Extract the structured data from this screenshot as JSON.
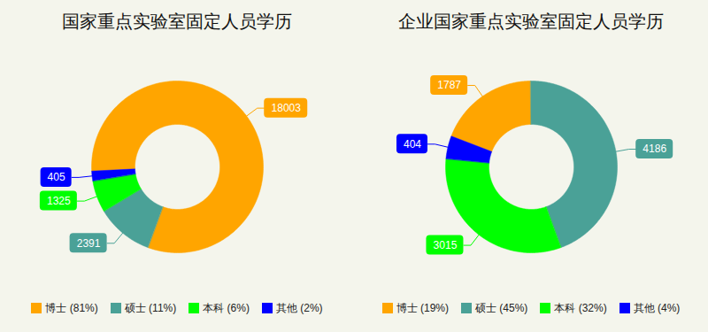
{
  "chart_data": [
    {
      "type": "donut",
      "title": "国家重点实验室固定人员学历",
      "categories": [
        "博士",
        "硕士",
        "本科",
        "其他"
      ],
      "values": [
        18003,
        2391,
        1325,
        405
      ],
      "colors": [
        "#ffa500",
        "#4aa197",
        "#00ff00",
        "#0000ff"
      ],
      "legend_labels": [
        "博士 (81%)",
        "硕士 (11%)",
        "本科 (6%)",
        "其他 (2%)"
      ],
      "data_labels": true,
      "legend": "bottom"
    },
    {
      "type": "donut",
      "title": "企业国家重点实验室固定人员学历",
      "categories": [
        "博士",
        "硕士",
        "本科",
        "其他"
      ],
      "values": [
        1787,
        4186,
        3015,
        404
      ],
      "colors": [
        "#ffa500",
        "#4aa197",
        "#00ff00",
        "#0000ff"
      ],
      "legend_labels": [
        "博士 (19%)",
        "硕士 (45%)",
        "本科 (32%)",
        "其他 (4%)"
      ],
      "data_labels": true,
      "legend": "bottom"
    }
  ]
}
